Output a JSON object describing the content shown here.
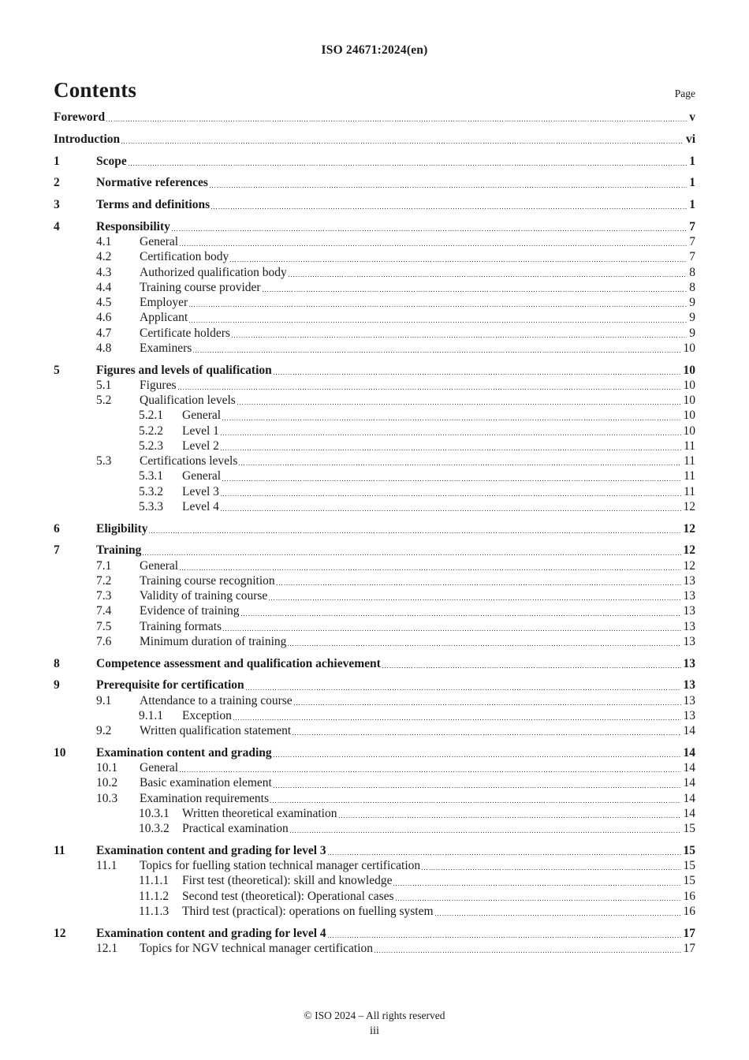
{
  "header": {
    "doc_id": "ISO 24671:2024(en)"
  },
  "contents": {
    "title": "Contents",
    "page_label": "Page"
  },
  "toc": [
    {
      "num": "",
      "title": "Foreword",
      "page": "v",
      "level": 0
    },
    {
      "num": "",
      "title": "Introduction",
      "page": "vi",
      "level": 0
    },
    {
      "num": "1",
      "title": "Scope",
      "page": "1",
      "level": 1
    },
    {
      "num": "2",
      "title": "Normative references",
      "page": "1",
      "level": 1
    },
    {
      "num": "3",
      "title": "Terms and definitions",
      "page": "1",
      "level": 1
    },
    {
      "num": "4",
      "title": "Responsibility",
      "page": "7",
      "level": 1
    },
    {
      "num": "4.1",
      "title": "General",
      "page": "7",
      "level": 2
    },
    {
      "num": "4.2",
      "title": "Certification body",
      "page": "7",
      "level": 2
    },
    {
      "num": "4.3",
      "title": "Authorized qualification body",
      "page": "8",
      "level": 2
    },
    {
      "num": "4.4",
      "title": "Training course provider",
      "page": "8",
      "level": 2
    },
    {
      "num": "4.5",
      "title": "Employer",
      "page": "9",
      "level": 2
    },
    {
      "num": "4.6",
      "title": "Applicant",
      "page": "9",
      "level": 2
    },
    {
      "num": "4.7",
      "title": "Certificate holders",
      "page": "9",
      "level": 2
    },
    {
      "num": "4.8",
      "title": "Examiners",
      "page": "10",
      "level": 2
    },
    {
      "num": "5",
      "title": "Figures and levels of qualification",
      "page": "10",
      "level": 1
    },
    {
      "num": "5.1",
      "title": "Figures",
      "page": "10",
      "level": 2
    },
    {
      "num": "5.2",
      "title": "Qualification levels",
      "page": "10",
      "level": 2
    },
    {
      "num": "5.2.1",
      "title": "General",
      "page": "10",
      "level": 3
    },
    {
      "num": "5.2.2",
      "title": "Level 1",
      "page": "10",
      "level": 3
    },
    {
      "num": "5.2.3",
      "title": "Level 2",
      "page": "11",
      "level": 3
    },
    {
      "num": "5.3",
      "title": "Certifications levels",
      "page": "11",
      "level": 2
    },
    {
      "num": "5.3.1",
      "title": "General",
      "page": "11",
      "level": 3
    },
    {
      "num": "5.3.2",
      "title": "Level 3",
      "page": "11",
      "level": 3
    },
    {
      "num": "5.3.3",
      "title": "Level 4",
      "page": "12",
      "level": 3
    },
    {
      "num": "6",
      "title": "Eligibility",
      "page": "12",
      "level": 1
    },
    {
      "num": "7",
      "title": "Training",
      "page": "12",
      "level": 1
    },
    {
      "num": "7.1",
      "title": "General",
      "page": "12",
      "level": 2
    },
    {
      "num": "7.2",
      "title": "Training course recognition",
      "page": "13",
      "level": 2
    },
    {
      "num": "7.3",
      "title": "Validity of training course",
      "page": "13",
      "level": 2
    },
    {
      "num": "7.4",
      "title": "Evidence of training",
      "page": "13",
      "level": 2
    },
    {
      "num": "7.5",
      "title": "Training formats",
      "page": "13",
      "level": 2
    },
    {
      "num": "7.6",
      "title": "Minimum duration of training",
      "page": "13",
      "level": 2
    },
    {
      "num": "8",
      "title": "Competence assessment and qualification achievement",
      "page": "13",
      "level": 1
    },
    {
      "num": "9",
      "title": "Prerequisite for certification",
      "page": "13",
      "level": 1
    },
    {
      "num": "9.1",
      "title": "Attendance to a training course",
      "page": "13",
      "level": 2
    },
    {
      "num": "9.1.1",
      "title": "Exception",
      "page": "13",
      "level": 3
    },
    {
      "num": "9.2",
      "title": "Written qualification statement",
      "page": "14",
      "level": 2
    },
    {
      "num": "10",
      "title": "Examination content and grading",
      "page": "14",
      "level": 1
    },
    {
      "num": "10.1",
      "title": "General",
      "page": "14",
      "level": 2
    },
    {
      "num": "10.2",
      "title": "Basic examination element",
      "page": "14",
      "level": 2
    },
    {
      "num": "10.3",
      "title": "Examination requirements",
      "page": "14",
      "level": 2
    },
    {
      "num": "10.3.1",
      "title": "Written theoretical examination",
      "page": "14",
      "level": 3
    },
    {
      "num": "10.3.2",
      "title": "Practical examination",
      "page": "15",
      "level": 3
    },
    {
      "num": "11",
      "title": "Examination content and grading for level 3",
      "page": "15",
      "level": 1
    },
    {
      "num": "11.1",
      "title": "Topics for fuelling station technical manager certification",
      "page": "15",
      "level": 2
    },
    {
      "num": "11.1.1",
      "title": "First test (theoretical): skill and knowledge",
      "page": "15",
      "level": 3
    },
    {
      "num": "11.1.2",
      "title": "Second test (theoretical): Operational cases",
      "page": "16",
      "level": 3
    },
    {
      "num": "11.1.3",
      "title": "Third test (practical): operations on fuelling system",
      "page": "16",
      "level": 3
    },
    {
      "num": "12",
      "title": "Examination content and grading for level 4",
      "page": "17",
      "level": 1
    },
    {
      "num": "12.1",
      "title": "Topics for NGV technical manager certification",
      "page": "17",
      "level": 2
    }
  ],
  "footer": {
    "copyright": "© ISO 2024 – All rights reserved",
    "page_number": "iii"
  }
}
